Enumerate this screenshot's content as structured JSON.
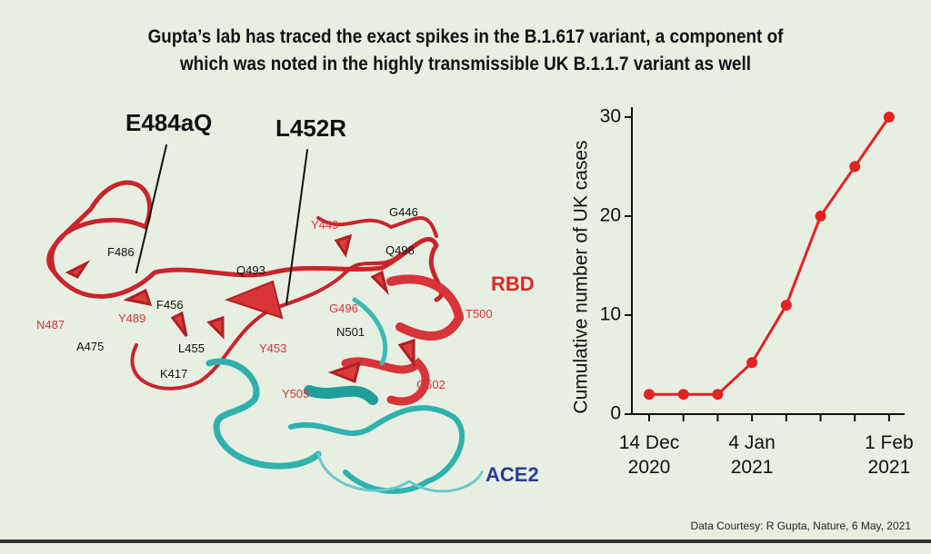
{
  "title": [
    "Gupta’s lab has traced the exact spikes in the B.1.617 variant, a component of",
    "which was noted in the highly transmissible UK B.1.1.7 variant as well"
  ],
  "protein": {
    "labels": [
      "E484aQ",
      "L452R",
      "F486",
      "Y449",
      "G446",
      "Q498",
      "Q493",
      "F456",
      "N487",
      "Y489",
      "A475",
      "L455",
      "Y453",
      "G496",
      "RBD",
      "T500",
      "N501",
      "K417",
      "Y505",
      "G502",
      "ACE2"
    ]
  },
  "chart_data": {
    "type": "line",
    "y_label": "Cumulative number of UK cases",
    "categories": [
      "14 Dec\n2020",
      null,
      null,
      "4 Jan\n2021",
      null,
      null,
      null,
      "1 Feb\n2021"
    ],
    "series": [
      {
        "color": "#e52222",
        "values": [
          2,
          2,
          2,
          5.2,
          11,
          20,
          25,
          30
        ]
      }
    ],
    "ylim": [
      0,
      31
    ],
    "yticks": [
      0,
      10,
      20,
      30
    ]
  },
  "footer": "Data Courtesy: R Gupta, Nature, 6 May, 2021"
}
